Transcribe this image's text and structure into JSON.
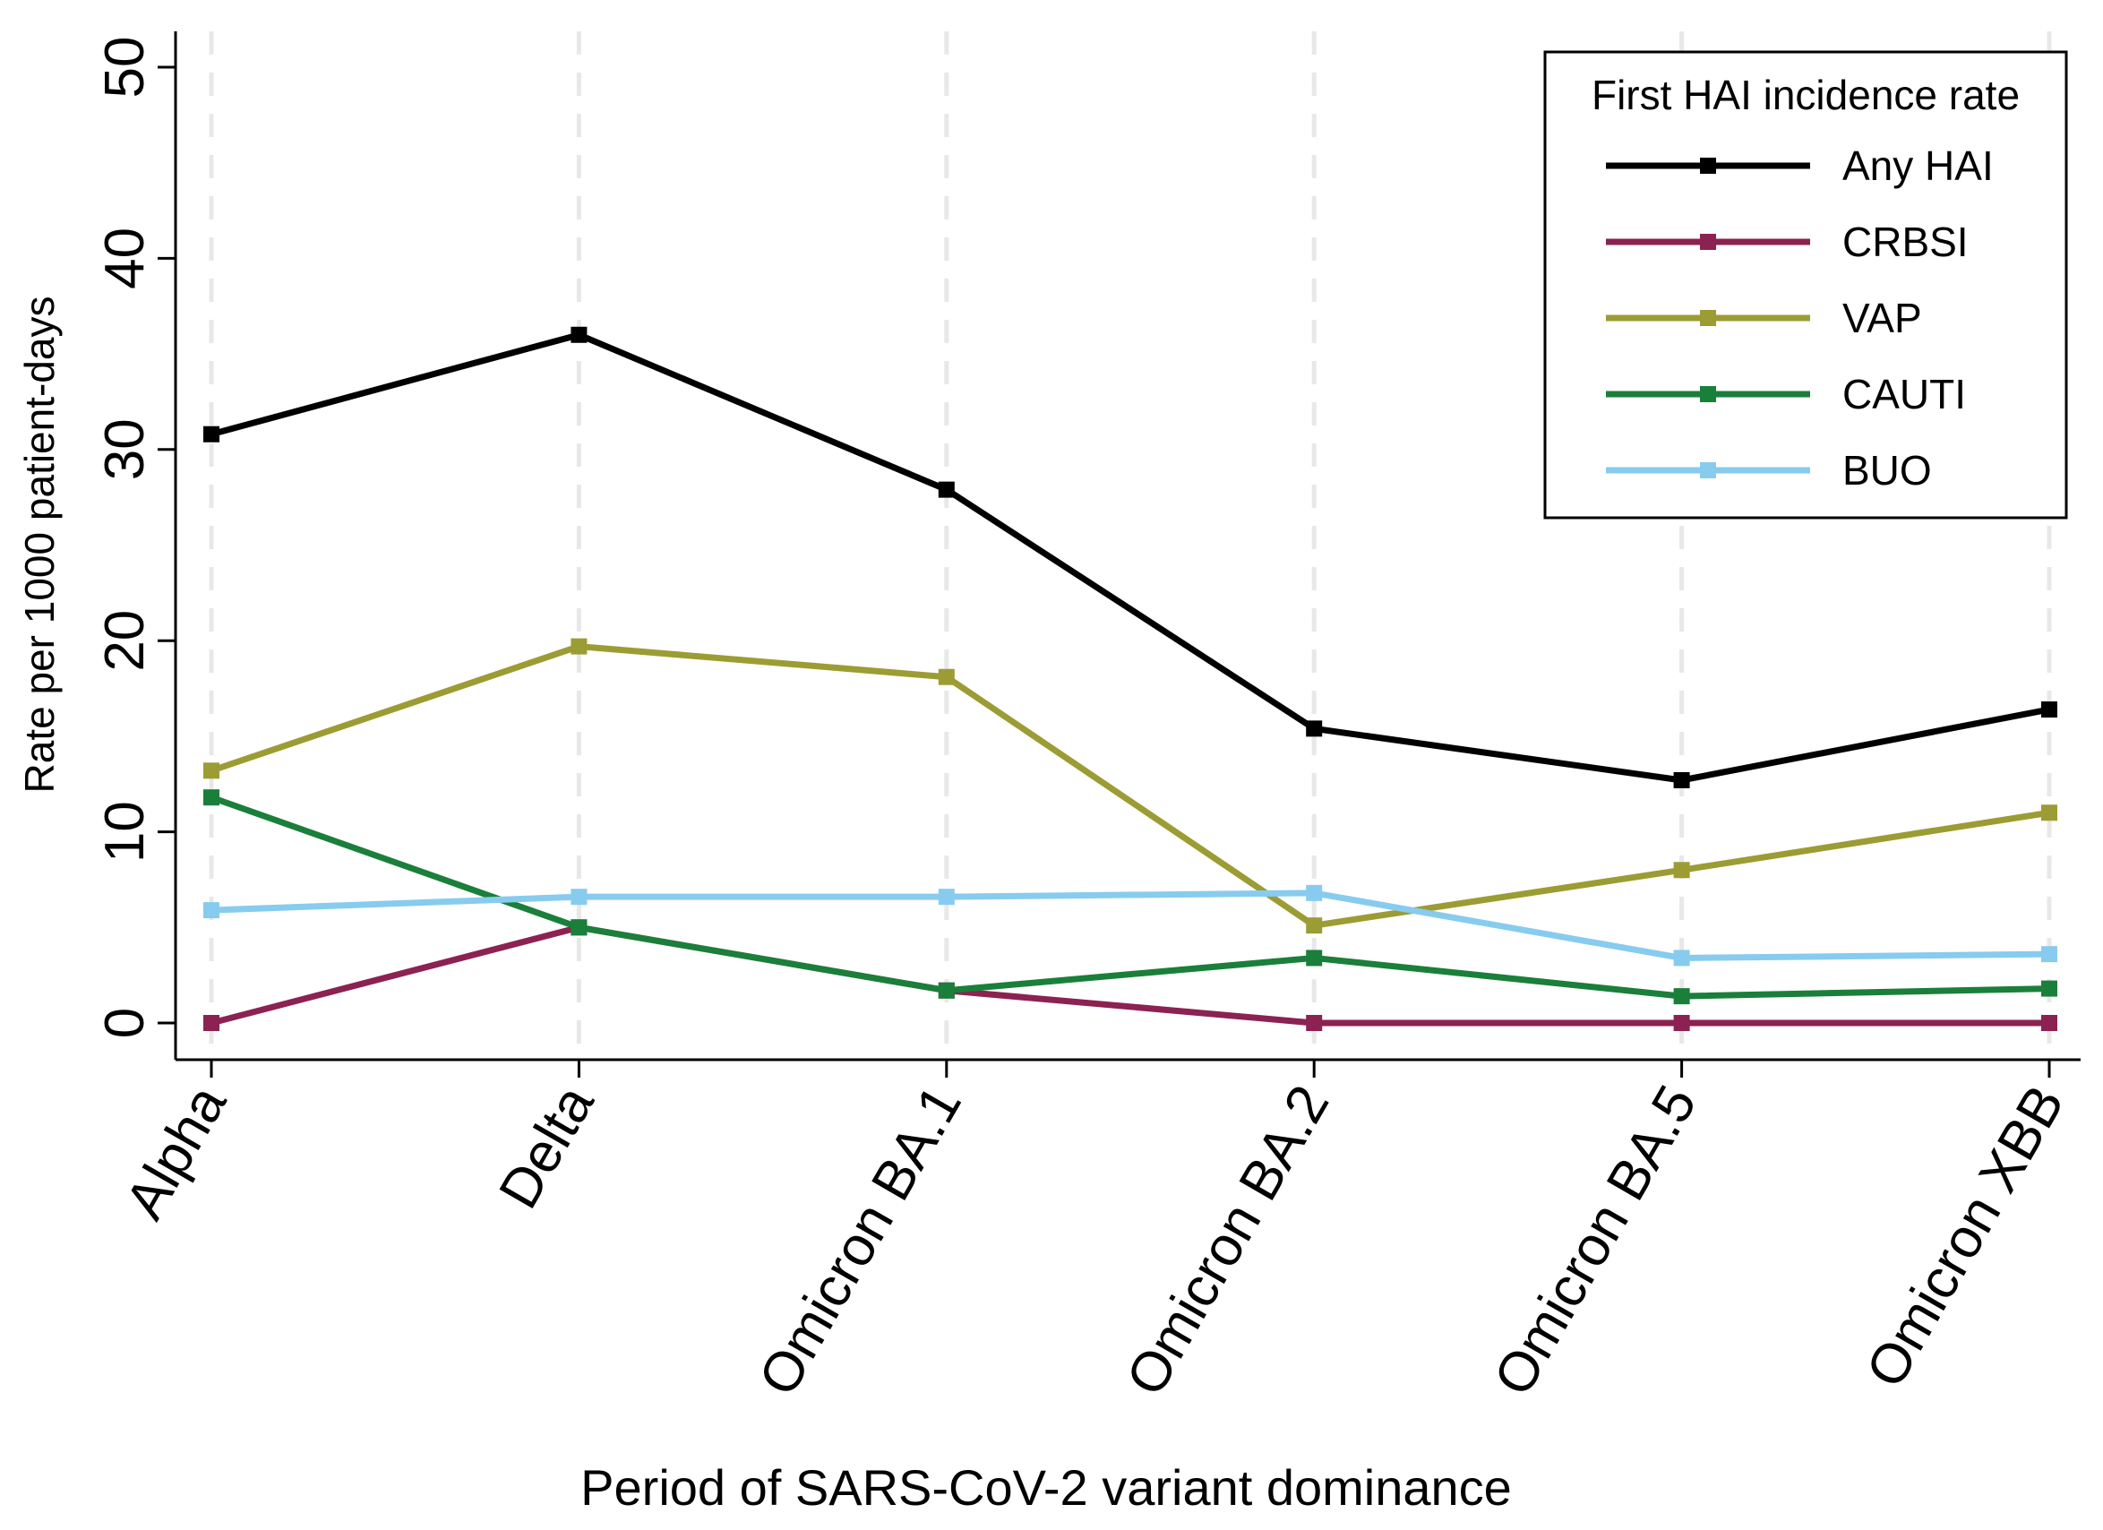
{
  "chart_data": {
    "type": "line",
    "xlabel": "Period of SARS-CoV-2 variant dominance",
    "ylabel": "Rate per 1000 patient-days",
    "ylim": [
      0,
      50
    ],
    "yticks": [
      0,
      10,
      20,
      30,
      40,
      50
    ],
    "grid": "vertical dashed at each category",
    "categories": [
      "Alpha",
      "Delta",
      "Omicron BA.1",
      "Omicron BA.2",
      "Omicron BA.5",
      "Omicron XBB"
    ],
    "legend": {
      "title": "First HAI incidence rate",
      "position": "top-right"
    },
    "series": [
      {
        "name": "Any HAI",
        "color": "#000000",
        "values": [
          30.8,
          36.0,
          27.9,
          15.4,
          12.7,
          16.4
        ]
      },
      {
        "name": "CRBSI",
        "color": "#8B2252",
        "values": [
          0.0,
          5.0,
          1.7,
          0.0,
          0.0,
          0.0
        ]
      },
      {
        "name": "VAP",
        "color": "#9C9C34",
        "values": [
          13.2,
          19.7,
          18.1,
          5.1,
          8.0,
          11.0
        ]
      },
      {
        "name": "CAUTI",
        "color": "#1A7F3A",
        "values": [
          11.8,
          5.0,
          1.7,
          3.4,
          1.4,
          1.8
        ]
      },
      {
        "name": "BUO",
        "color": "#87CCEE",
        "values": [
          5.9,
          6.6,
          6.6,
          6.8,
          3.4,
          3.6
        ]
      }
    ]
  }
}
